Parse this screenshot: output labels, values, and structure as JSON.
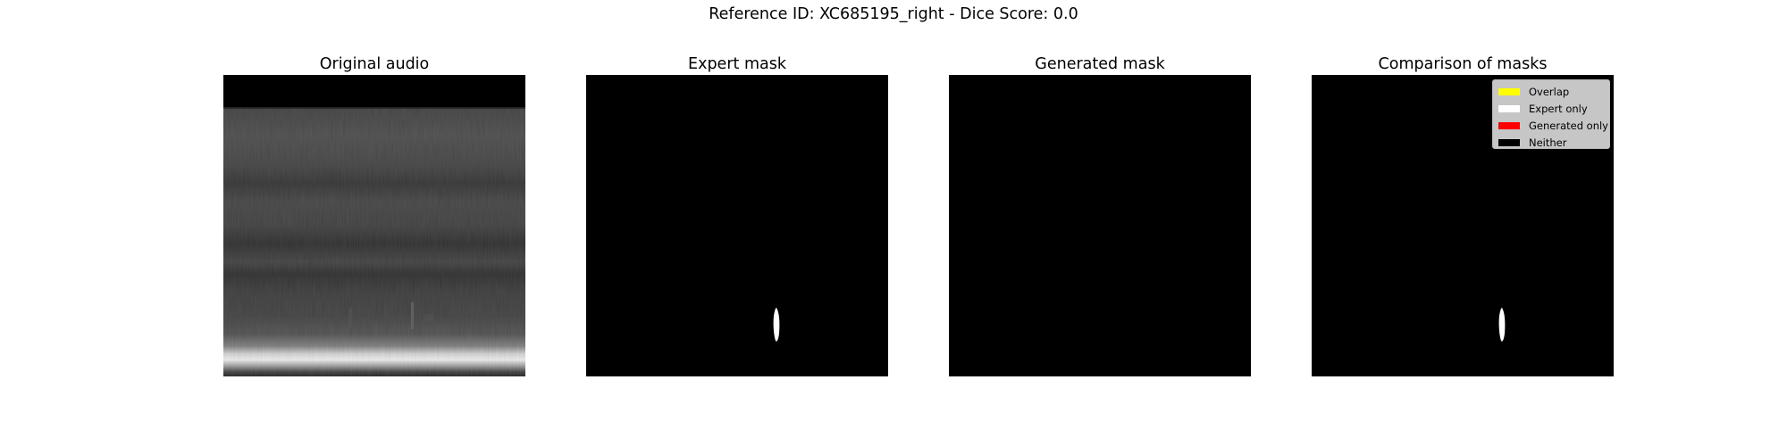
{
  "figure": {
    "suptitle": "Reference ID: XC685195_right - Dice Score: 0.0"
  },
  "panels": [
    {
      "title": "Original audio"
    },
    {
      "title": "Expert mask"
    },
    {
      "title": "Generated mask"
    },
    {
      "title": "Comparison of masks"
    }
  ],
  "legend": {
    "items": [
      {
        "label": "Overlap",
        "color": "#ffff00"
      },
      {
        "label": "Expert only",
        "color": "#ffffff"
      },
      {
        "label": "Generated only",
        "color": "#ff0000"
      },
      {
        "label": "Neither",
        "color": "#000000"
      }
    ]
  },
  "dice_score": 0.0
}
